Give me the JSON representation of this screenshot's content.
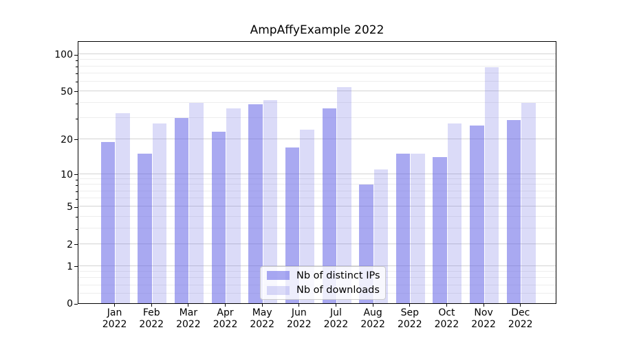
{
  "title": "AmpAffyExample 2022",
  "chart_data": {
    "type": "bar",
    "title": "AmpAffyExample 2022",
    "categories": [
      "Jan",
      "Feb",
      "Mar",
      "Apr",
      "May",
      "Jun",
      "Jul",
      "Aug",
      "Sep",
      "Oct",
      "Nov",
      "Dec"
    ],
    "category_year": "2022",
    "series": [
      {
        "name": "Nb of distinct IPs",
        "color": "rgba(99,99,230,0.55)",
        "solid_color": "#a9a9f1",
        "values": [
          19,
          15,
          30,
          23,
          39,
          17,
          36,
          8,
          15,
          14,
          26,
          29
        ]
      },
      {
        "name": "Nb of downloads",
        "color": "rgba(111,111,227,0.25)",
        "solid_color": "#dbdbf8",
        "values": [
          33,
          27,
          40,
          36,
          42,
          24,
          54,
          11,
          15,
          27,
          79,
          40
        ]
      }
    ],
    "yscale": "log1p",
    "ylim": [
      0,
      130
    ],
    "yticks": [
      0,
      1,
      2,
      5,
      10,
      20,
      50,
      100
    ],
    "minor_gridticks": [
      0.2,
      0.4,
      0.6,
      0.8,
      3,
      4,
      6,
      7,
      8,
      9,
      30,
      40,
      60,
      70,
      80,
      90
    ],
    "grid": true,
    "legend_position": "lower center"
  },
  "colors": {
    "grid_major": "#d3d3d3",
    "grid_minor": "#ededed",
    "axis": "#000000",
    "text": "#000000"
  }
}
